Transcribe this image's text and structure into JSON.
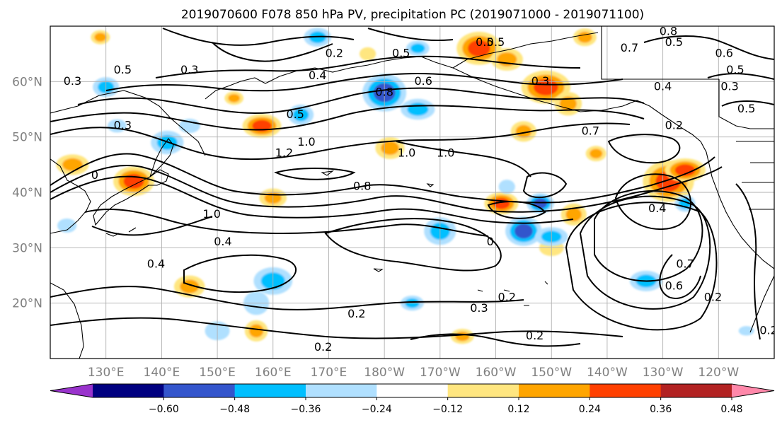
{
  "chart_data": {
    "type": "heatmap",
    "title": "2019070600 F078 850 hPa PV, precipitation PC (2019071000 - 2019071100)",
    "projection": "PlateCarree",
    "extent": {
      "lon_min": 120,
      "lon_max": 250,
      "lat_min": 10,
      "lat_max": 70
    },
    "x_ticks": [
      {
        "lon": 130,
        "label": "130°E"
      },
      {
        "lon": 140,
        "label": "140°E"
      },
      {
        "lon": 150,
        "label": "150°E"
      },
      {
        "lon": 160,
        "label": "160°E"
      },
      {
        "lon": 170,
        "label": "170°E"
      },
      {
        "lon": 180,
        "label": "180°W"
      },
      {
        "lon": 190,
        "label": "170°W"
      },
      {
        "lon": 200,
        "label": "160°W"
      },
      {
        "lon": 210,
        "label": "150°W"
      },
      {
        "lon": 220,
        "label": "140°W"
      },
      {
        "lon": 230,
        "label": "130°W"
      },
      {
        "lon": 240,
        "label": "120°W"
      }
    ],
    "y_ticks": [
      {
        "lat": 20,
        "label": "20°N"
      },
      {
        "lat": 30,
        "label": "30°N"
      },
      {
        "lat": 40,
        "label": "40°N"
      },
      {
        "lat": 50,
        "label": "50°N"
      },
      {
        "lat": 60,
        "label": "60°N"
      }
    ],
    "grid": true,
    "colorbar": {
      "orientation": "horizontal",
      "extend": "both",
      "boundaries": [
        -0.72,
        -0.6,
        -0.48,
        -0.36,
        -0.24,
        -0.12,
        0.12,
        0.24,
        0.36,
        0.48,
        0.6,
        0.72
      ],
      "colors": [
        "#9933cc",
        "#000080",
        "#3355cc",
        "#00bfff",
        "#b0e0ff",
        "#ffffff",
        "#ffe680",
        "#ffa500",
        "#ff4000",
        "#b22222",
        "#ff88aa"
      ],
      "tick_values": [
        -0.6,
        -0.48,
        -0.36,
        -0.24,
        -0.12,
        0.12,
        0.24,
        0.36,
        0.48,
        0.6
      ],
      "tick_labels": [
        "−0.60",
        "−0.48",
        "−0.36",
        "−0.24",
        "−0.12",
        "0.12",
        "0.24",
        "0.36",
        "0.48",
        "0.60"
      ]
    },
    "pv_contour_labels": [
      {
        "lon": 139,
        "lat": 27,
        "text": "0.4"
      },
      {
        "lon": 151,
        "lat": 31,
        "text": "0.4"
      },
      {
        "lon": 149,
        "lat": 36,
        "text": "1.0"
      },
      {
        "lon": 166,
        "lat": 49,
        "text": "1.0"
      },
      {
        "lon": 164,
        "lat": 54,
        "text": "0.5"
      },
      {
        "lon": 162,
        "lat": 47,
        "text": "1.2"
      },
      {
        "lon": 176,
        "lat": 41,
        "text": "0.8"
      },
      {
        "lon": 184,
        "lat": 47,
        "text": "1.0"
      },
      {
        "lon": 191,
        "lat": 47,
        "text": "1.0"
      },
      {
        "lon": 133,
        "lat": 52,
        "text": "0.3"
      },
      {
        "lon": 124,
        "lat": 60,
        "text": "0.3"
      },
      {
        "lon": 133,
        "lat": 62,
        "text": "0.5"
      },
      {
        "lon": 145,
        "lat": 62,
        "text": "0.3"
      },
      {
        "lon": 168,
        "lat": 61,
        "text": "0.4"
      },
      {
        "lon": 171,
        "lat": 65,
        "text": "0.2"
      },
      {
        "lon": 180,
        "lat": 58,
        "text": "0.8"
      },
      {
        "lon": 183,
        "lat": 65,
        "text": "0.5"
      },
      {
        "lon": 187,
        "lat": 60,
        "text": "0.6"
      },
      {
        "lon": 198,
        "lat": 67,
        "text": "0.5"
      },
      {
        "lon": 200,
        "lat": 67,
        "text": "0.5"
      },
      {
        "lon": 208,
        "lat": 60,
        "text": "0.3"
      },
      {
        "lon": 217,
        "lat": 51,
        "text": "0.7"
      },
      {
        "lon": 224,
        "lat": 66,
        "text": "0.7"
      },
      {
        "lon": 230,
        "lat": 59,
        "text": "0.4"
      },
      {
        "lon": 232,
        "lat": 52,
        "text": "0.2"
      },
      {
        "lon": 231,
        "lat": 69,
        "text": "0.8"
      },
      {
        "lon": 232,
        "lat": 67,
        "text": "0.5"
      },
      {
        "lon": 241,
        "lat": 65,
        "text": "0.6"
      },
      {
        "lon": 242,
        "lat": 59,
        "text": "0.3"
      },
      {
        "lon": 243,
        "lat": 62,
        "text": "0.5"
      },
      {
        "lon": 245,
        "lat": 55,
        "text": "0.5"
      },
      {
        "lon": 128,
        "lat": 43,
        "text": "0"
      },
      {
        "lon": 229,
        "lat": 37,
        "text": "0.4"
      },
      {
        "lon": 234,
        "lat": 27,
        "text": "0.7"
      },
      {
        "lon": 232,
        "lat": 23,
        "text": "0.6"
      },
      {
        "lon": 239,
        "lat": 21,
        "text": "0.2"
      },
      {
        "lon": 249,
        "lat": 15,
        "text": "0.2"
      },
      {
        "lon": 197,
        "lat": 19,
        "text": "0.3"
      },
      {
        "lon": 202,
        "lat": 21,
        "text": "0.2"
      },
      {
        "lon": 207,
        "lat": 14,
        "text": "0.2"
      },
      {
        "lon": 175,
        "lat": 18,
        "text": "0.2"
      },
      {
        "lon": 169,
        "lat": 12,
        "text": "0.2"
      },
      {
        "lon": 199,
        "lat": 31,
        "text": "0"
      }
    ],
    "precip_pc_shading": [
      {
        "lon": 197,
        "lat": 66,
        "v": 0.5,
        "r": 3.5
      },
      {
        "lon": 202,
        "lat": 64,
        "v": 0.4,
        "r": 2.2
      },
      {
        "lon": 209,
        "lat": 59,
        "v": 0.45,
        "r": 3
      },
      {
        "lon": 213,
        "lat": 56,
        "v": 0.35,
        "r": 2
      },
      {
        "lon": 158,
        "lat": 52,
        "v": 0.45,
        "r": 2.5
      },
      {
        "lon": 205,
        "lat": 51,
        "v": 0.4,
        "r": 2
      },
      {
        "lon": 181,
        "lat": 48,
        "v": 0.38,
        "r": 2
      },
      {
        "lon": 135,
        "lat": 42,
        "v": 0.45,
        "r": 2.5
      },
      {
        "lon": 160,
        "lat": 39,
        "v": 0.4,
        "r": 2
      },
      {
        "lon": 201,
        "lat": 38,
        "v": 0.45,
        "r": 2.2
      },
      {
        "lon": 214,
        "lat": 36,
        "v": 0.4,
        "r": 2
      },
      {
        "lon": 231,
        "lat": 42,
        "v": 0.5,
        "r": 3.5
      },
      {
        "lon": 234,
        "lat": 44,
        "v": 0.45,
        "r": 2.5
      },
      {
        "lon": 218,
        "lat": 47,
        "v": 0.3,
        "r": 1.5
      },
      {
        "lon": 145,
        "lat": 23,
        "v": 0.35,
        "r": 2
      },
      {
        "lon": 157,
        "lat": 15,
        "v": 0.4,
        "r": 1.8
      },
      {
        "lon": 194,
        "lat": 14,
        "v": 0.35,
        "r": 1.6
      },
      {
        "lon": 124,
        "lat": 45,
        "v": 0.3,
        "r": 2
      },
      {
        "lon": 177,
        "lat": 65,
        "v": 0.28,
        "r": 1.2
      },
      {
        "lon": 216,
        "lat": 68,
        "v": 0.3,
        "r": 1.5
      },
      {
        "lon": 129,
        "lat": 68,
        "v": 0.3,
        "r": 1.5
      },
      {
        "lon": 153,
        "lat": 57,
        "v": 0.3,
        "r": 1.3
      },
      {
        "lon": 210,
        "lat": 30,
        "v": 0.2,
        "r": 1.5
      },
      {
        "lon": 180,
        "lat": 58,
        "v": -0.5,
        "r": 3.2
      },
      {
        "lon": 186,
        "lat": 55,
        "v": -0.35,
        "r": 2.2
      },
      {
        "lon": 165,
        "lat": 54,
        "v": -0.3,
        "r": 2
      },
      {
        "lon": 130,
        "lat": 59,
        "v": -0.35,
        "r": 1.8
      },
      {
        "lon": 141,
        "lat": 49,
        "v": -0.4,
        "r": 2
      },
      {
        "lon": 168,
        "lat": 68,
        "v": -0.35,
        "r": 2
      },
      {
        "lon": 186,
        "lat": 66,
        "v": -0.3,
        "r": 1.5
      },
      {
        "lon": 190,
        "lat": 33,
        "v": -0.4,
        "r": 2.5
      },
      {
        "lon": 205,
        "lat": 33,
        "v": -0.45,
        "r": 2.5
      },
      {
        "lon": 210,
        "lat": 32,
        "v": -0.35,
        "r": 2
      },
      {
        "lon": 208,
        "lat": 38,
        "v": -0.5,
        "r": 2
      },
      {
        "lon": 160,
        "lat": 24,
        "v": -0.35,
        "r": 2.5
      },
      {
        "lon": 157,
        "lat": 20,
        "v": -0.25,
        "r": 2
      },
      {
        "lon": 185,
        "lat": 20,
        "v": -0.35,
        "r": 1.6
      },
      {
        "lon": 227,
        "lat": 24,
        "v": -0.35,
        "r": 2
      },
      {
        "lon": 234,
        "lat": 38,
        "v": -0.35,
        "r": 1.5
      },
      {
        "lon": 150,
        "lat": 15,
        "v": -0.28,
        "r": 1.6
      },
      {
        "lon": 123,
        "lat": 34,
        "v": -0.28,
        "r": 1.5
      },
      {
        "lon": 132,
        "lat": 52,
        "v": -0.25,
        "r": 1.3
      },
      {
        "lon": 145,
        "lat": 52,
        "v": -0.25,
        "r": 1.3
      },
      {
        "lon": 202,
        "lat": 41,
        "v": -0.28,
        "r": 1.2
      },
      {
        "lon": 245,
        "lat": 15,
        "v": -0.25,
        "r": 1
      }
    ]
  }
}
